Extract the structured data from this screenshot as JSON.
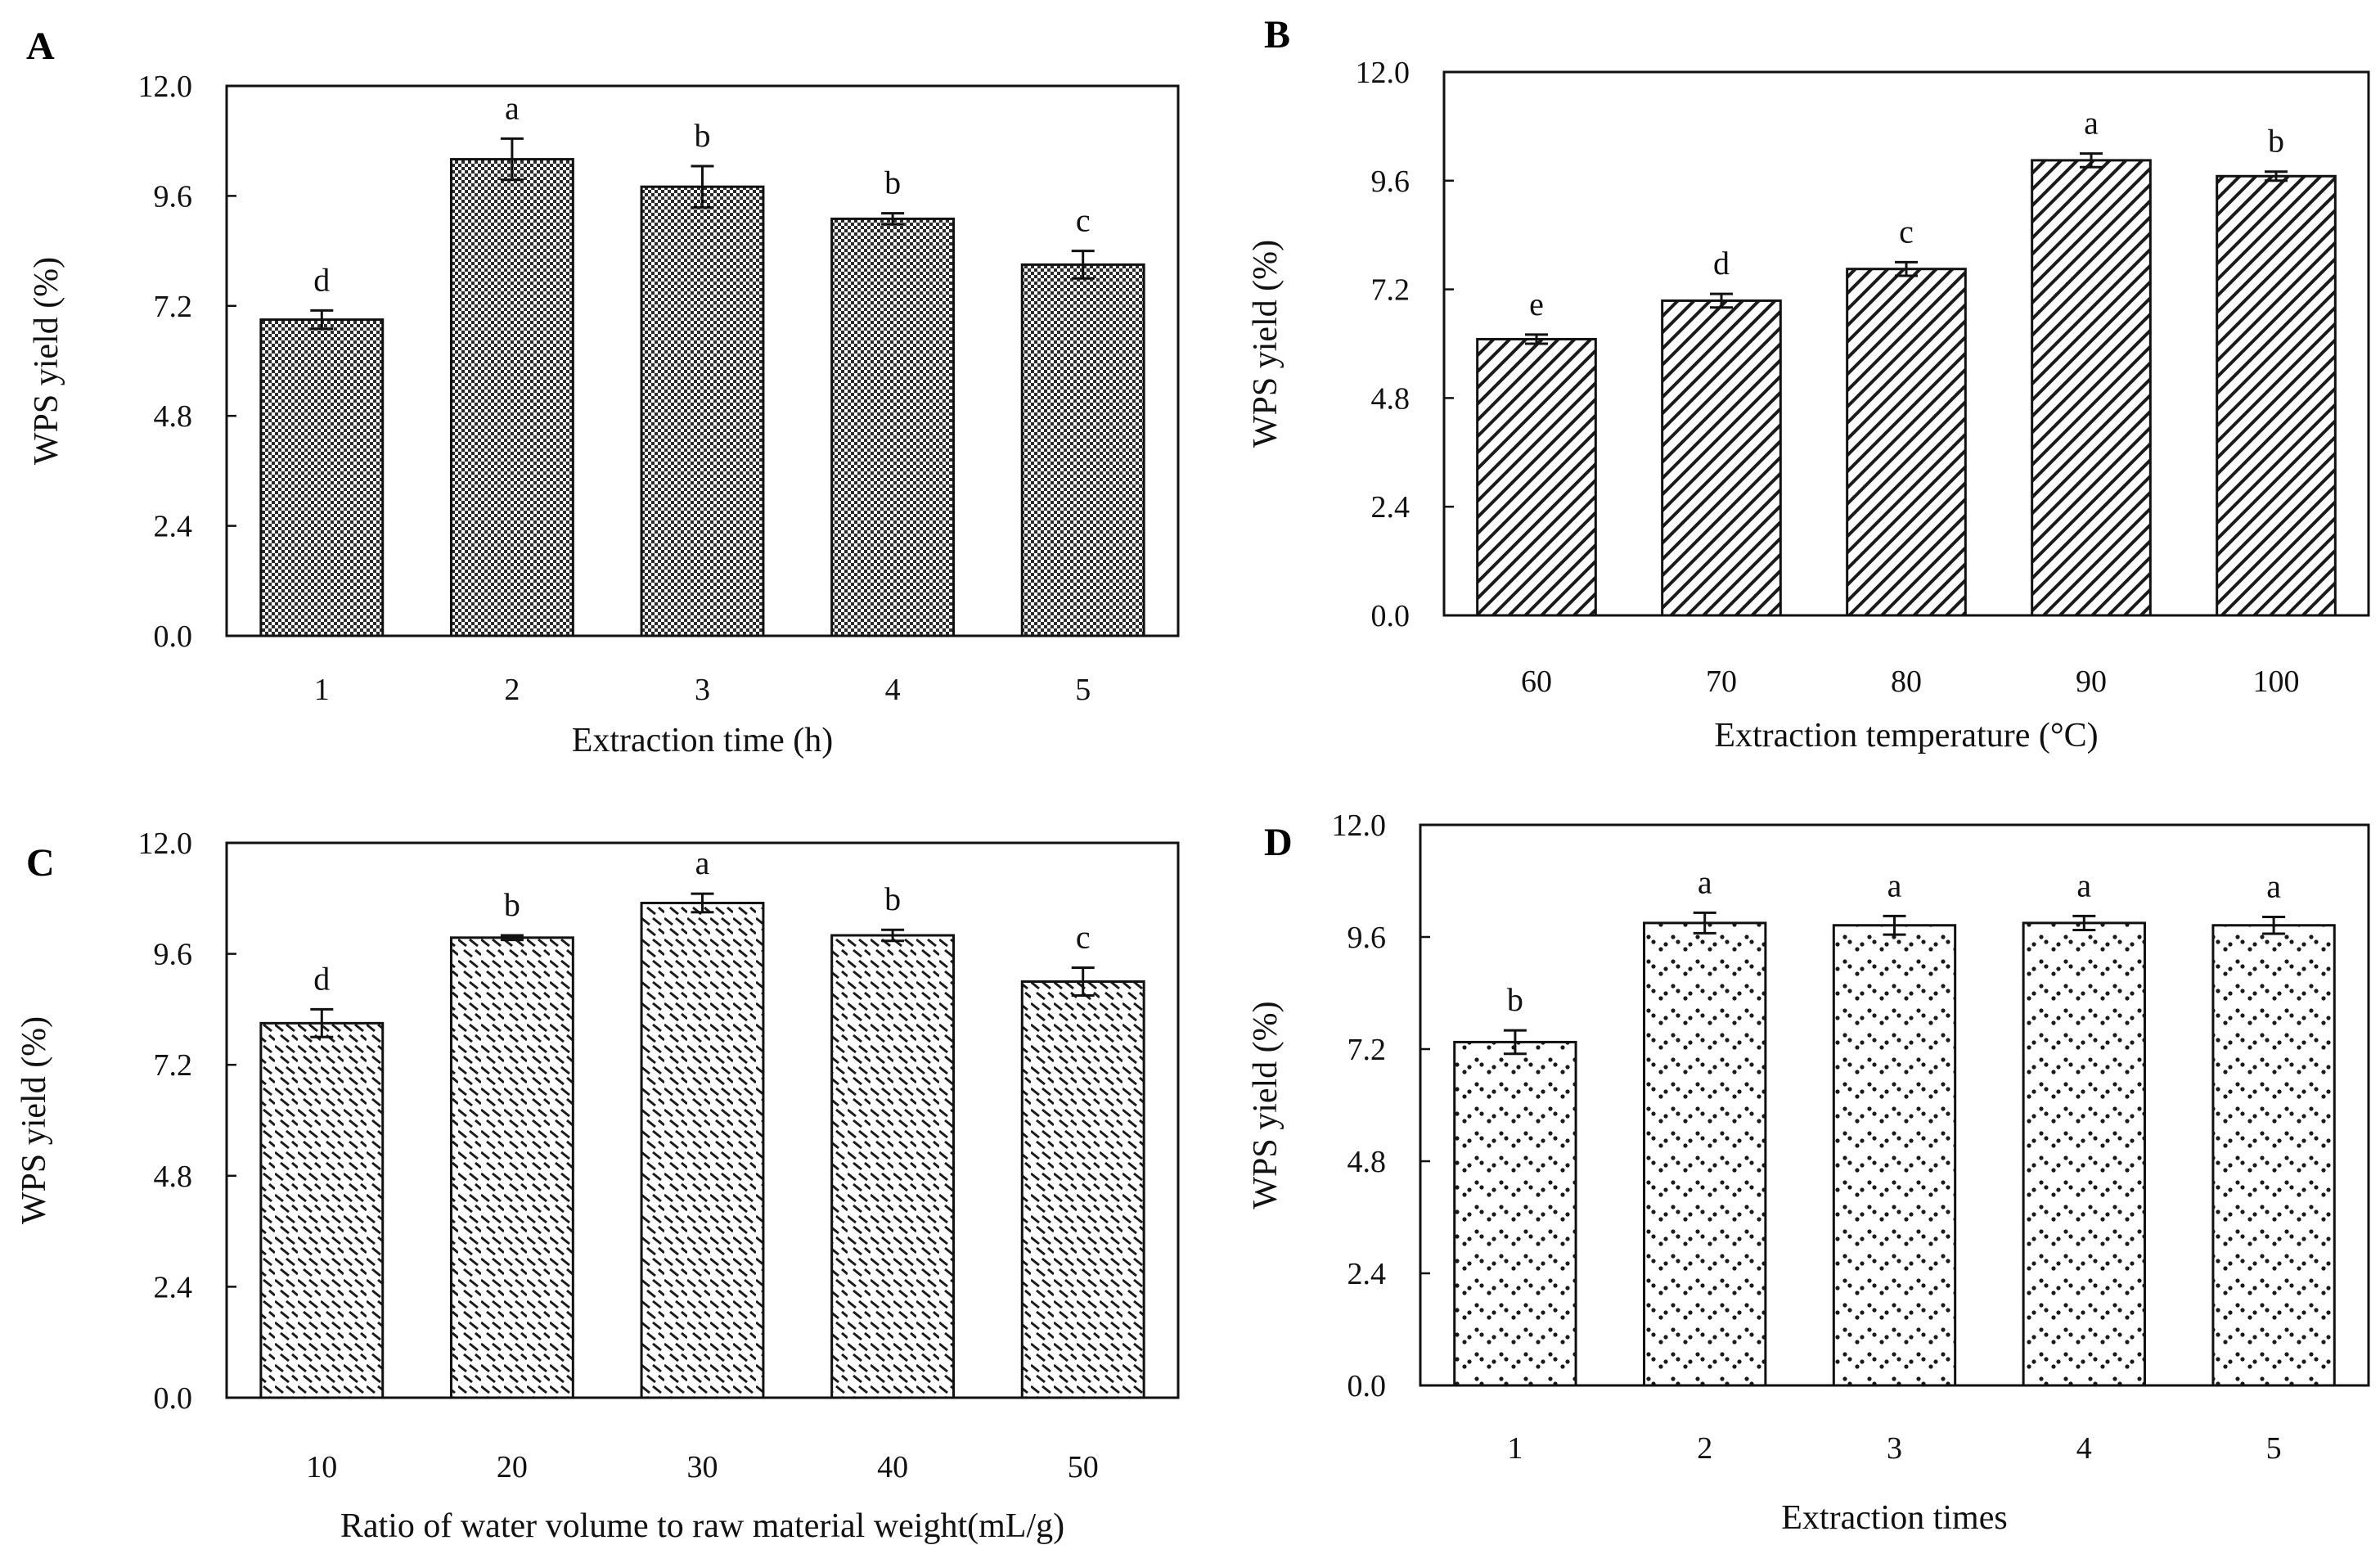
{
  "chart_data": [
    {
      "panel": "A",
      "type": "bar",
      "title": "",
      "xlabel": "Extraction time (h)",
      "ylabel": "WPS yield (%)",
      "categories": [
        "1",
        "2",
        "3",
        "4",
        "5"
      ],
      "values": [
        6.9,
        10.4,
        9.8,
        9.1,
        8.1
      ],
      "errors": [
        0.2,
        0.45,
        0.45,
        0.12,
        0.3
      ],
      "significance": [
        "d",
        "a",
        "b",
        "b",
        "c"
      ],
      "ylim": [
        0,
        12
      ],
      "yticks": [
        "0.0",
        "2.4",
        "4.8",
        "7.2",
        "9.6",
        "12.0"
      ],
      "pattern": "checker"
    },
    {
      "panel": "B",
      "type": "bar",
      "title": "",
      "xlabel": "Extraction temperature (°C)",
      "ylabel": "WPS yield (%)",
      "categories": [
        "60",
        "70",
        "80",
        "90",
        "100"
      ],
      "values": [
        6.1,
        6.95,
        7.65,
        10.05,
        9.7
      ],
      "errors": [
        0.1,
        0.15,
        0.15,
        0.15,
        0.1
      ],
      "significance": [
        "e",
        "d",
        "c",
        "a",
        "b"
      ],
      "ylim": [
        0,
        12
      ],
      "yticks": [
        "0.0",
        "2.4",
        "4.8",
        "7.2",
        "9.6",
        "12.0"
      ],
      "pattern": "diagonal"
    },
    {
      "panel": "C",
      "type": "bar",
      "title": "",
      "xlabel": "Ratio of water volume to raw material weight(mL/g)",
      "ylabel": "WPS yield (%)",
      "categories": [
        "10",
        "20",
        "30",
        "40",
        "50"
      ],
      "values": [
        8.1,
        9.95,
        10.7,
        10.0,
        9.0
      ],
      "errors": [
        0.3,
        0.05,
        0.2,
        0.12,
        0.3
      ],
      "significance": [
        "d",
        "b",
        "a",
        "b",
        "c"
      ],
      "ylim": [
        0,
        12
      ],
      "yticks": [
        "0.0",
        "2.4",
        "4.8",
        "7.2",
        "9.6",
        "12.0"
      ],
      "pattern": "dashes"
    },
    {
      "panel": "D",
      "type": "bar",
      "title": "",
      "xlabel": "Extraction times",
      "ylabel": "WPS yield (%)",
      "categories": [
        "1",
        "2",
        "3",
        "4",
        "5"
      ],
      "values": [
        7.35,
        9.9,
        9.85,
        9.9,
        9.85
      ],
      "errors": [
        0.25,
        0.22,
        0.2,
        0.15,
        0.18
      ],
      "significance": [
        "b",
        "a",
        "a",
        "a",
        "a"
      ],
      "ylim": [
        0,
        12
      ],
      "yticks": [
        "0.0",
        "2.4",
        "4.8",
        "7.2",
        "9.6",
        "12.0"
      ],
      "pattern": "dots"
    }
  ]
}
